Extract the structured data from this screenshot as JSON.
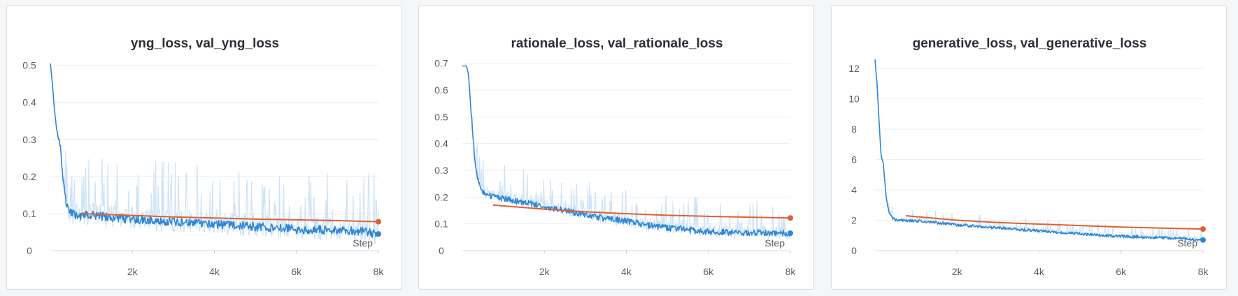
{
  "colors": {
    "train": "#2e86d6",
    "train_raw": "#cfe3f7",
    "val": "#e0602f",
    "grid": "#eceef1"
  },
  "chart_data": [
    {
      "type": "line",
      "title": "yng_loss, val_yng_loss",
      "xlabel": "Step",
      "ylabel": "",
      "xlim": [
        0,
        8000
      ],
      "ylim": [
        0,
        0.52
      ],
      "xticks": [
        2000,
        4000,
        6000,
        8000
      ],
      "xtick_labels": [
        "2k",
        "4k",
        "6k",
        "8k"
      ],
      "yticks": [
        0,
        0.1,
        0.2,
        0.3,
        0.4,
        0.5
      ],
      "ytick_labels": [
        "0",
        "0.1",
        "0.2",
        "0.3",
        "0.4",
        "0.5"
      ],
      "series": [
        {
          "key": "train",
          "x": [
            0,
            50,
            100,
            150,
            200,
            250,
            300,
            350,
            400,
            450,
            500,
            700,
            1000,
            1500,
            2000,
            2500,
            3000,
            3500,
            4000,
            4500,
            5000,
            5500,
            6000,
            6500,
            7000,
            7500,
            8000
          ],
          "y": [
            0.505,
            0.45,
            0.38,
            0.33,
            0.3,
            0.27,
            0.21,
            0.15,
            0.12,
            0.105,
            0.1,
            0.095,
            0.095,
            0.09,
            0.085,
            0.082,
            0.078,
            0.075,
            0.072,
            0.068,
            0.065,
            0.062,
            0.058,
            0.056,
            0.055,
            0.053,
            0.045
          ],
          "noise_amp": 0.012,
          "raw_amp": 0.09
        },
        {
          "key": "val",
          "x": [
            750,
            2000,
            3000,
            4000,
            5000,
            6000,
            7000,
            8000
          ],
          "y": [
            0.1,
            0.095,
            0.091,
            0.088,
            0.085,
            0.083,
            0.081,
            0.078
          ]
        }
      ]
    },
    {
      "type": "line",
      "title": "rationale_loss, val_rationale_loss",
      "xlabel": "Step",
      "ylabel": "",
      "xlim": [
        0,
        8000
      ],
      "ylim": [
        0,
        0.72
      ],
      "xticks": [
        2000,
        4000,
        6000,
        8000
      ],
      "xtick_labels": [
        "2k",
        "4k",
        "6k",
        "8k"
      ],
      "yticks": [
        0,
        0.1,
        0.2,
        0.3,
        0.4,
        0.5,
        0.6,
        0.7
      ],
      "ytick_labels": [
        "0",
        "0.1",
        "0.2",
        "0.3",
        "0.4",
        "0.5",
        "0.6",
        "0.7"
      ],
      "series": [
        {
          "key": "train",
          "x": [
            0,
            100,
            150,
            200,
            250,
            300,
            350,
            400,
            500,
            700,
            1000,
            1500,
            2000,
            2500,
            3000,
            3500,
            4000,
            4500,
            5000,
            5500,
            6000,
            6500,
            7000,
            7500,
            8000
          ],
          "y": [
            0.69,
            0.69,
            0.66,
            0.55,
            0.45,
            0.35,
            0.29,
            0.25,
            0.22,
            0.205,
            0.195,
            0.18,
            0.165,
            0.15,
            0.135,
            0.12,
            0.11,
            0.095,
            0.085,
            0.078,
            0.07,
            0.068,
            0.067,
            0.066,
            0.065
          ],
          "noise_amp": 0.012,
          "raw_amp": 0.07
        },
        {
          "key": "val",
          "x": [
            750,
            2000,
            3000,
            4000,
            5000,
            6000,
            7000,
            8000
          ],
          "y": [
            0.17,
            0.155,
            0.145,
            0.138,
            0.132,
            0.128,
            0.125,
            0.122
          ]
        }
      ]
    },
    {
      "type": "line",
      "title": "generative_loss, val_generative_loss",
      "xlabel": "Step",
      "ylabel": "",
      "xlim": [
        0,
        8000
      ],
      "ylim": [
        0,
        12.7
      ],
      "xticks": [
        2000,
        4000,
        6000,
        8000
      ],
      "xtick_labels": [
        "2k",
        "4k",
        "6k",
        "8k"
      ],
      "yticks": [
        0,
        2,
        4,
        6,
        8,
        10,
        12
      ],
      "ytick_labels": [
        "0",
        "2",
        "4",
        "6",
        "8",
        "10",
        "12"
      ],
      "series": [
        {
          "key": "train",
          "x": [
            0,
            50,
            100,
            150,
            200,
            250,
            300,
            350,
            400,
            500,
            700,
            1000,
            1500,
            2000,
            2500,
            3000,
            3500,
            4000,
            4500,
            5000,
            5500,
            6000,
            6500,
            7000,
            7500,
            8000
          ],
          "y": [
            12.6,
            11.0,
            8.5,
            6.2,
            5.8,
            4.2,
            3.0,
            2.5,
            2.2,
            2.0,
            2.0,
            1.95,
            1.85,
            1.7,
            1.6,
            1.5,
            1.4,
            1.3,
            1.2,
            1.1,
            1.0,
            0.95,
            0.9,
            0.85,
            0.8,
            0.7
          ],
          "noise_amp": 0.09,
          "raw_amp": 0.45
        },
        {
          "key": "val",
          "x": [
            750,
            2000,
            3000,
            4000,
            5000,
            6000,
            7000,
            8000
          ],
          "y": [
            2.3,
            2.0,
            1.85,
            1.75,
            1.65,
            1.55,
            1.48,
            1.42
          ]
        }
      ]
    }
  ]
}
